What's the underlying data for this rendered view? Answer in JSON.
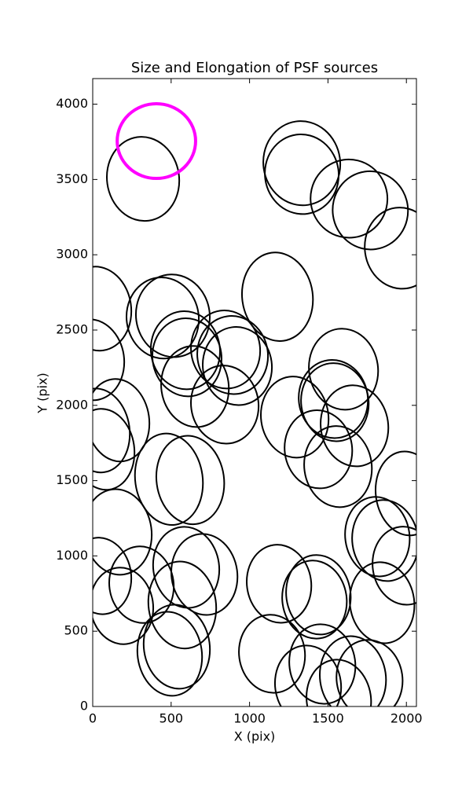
{
  "chart_data": {
    "type": "ellipse",
    "title": "Size and Elongation of PSF sources",
    "xlabel": "X (pix)",
    "ylabel": "Y (pix)",
    "xlim": [
      0,
      2064
    ],
    "ylim": [
      0,
      4170
    ],
    "xticks": [
      0,
      500,
      1000,
      1500,
      2000
    ],
    "yticks": [
      0,
      500,
      1000,
      1500,
      2000,
      2500,
      3000,
      3500,
      4000
    ],
    "series": [
      {
        "color": "#000000",
        "linewidth": 2,
        "x": [
          321,
          1333,
          1333,
          1634,
          1770,
          1965,
          30,
          1178,
          -10,
          446,
          511,
          591,
          601,
          652,
          847,
          892,
          922,
          842,
          1599,
          1534,
          1544,
          1669,
          1288,
          1439,
          1564,
          160,
          70,
          35,
          486,
          622,
          160,
          50,
          185,
          311,
          596,
          712,
          571,
          536,
          491,
          1188,
          1143,
          1414,
          1439,
          1464,
          1373,
          1845,
          1865,
          1815,
          2005,
          1990,
          1659,
          1765,
          1569
        ],
        "y": [
          3504,
          3608,
          3535,
          3373,
          3295,
          3044,
          2642,
          2721,
          2303,
          2580,
          2595,
          2366,
          2319,
          2125,
          2371,
          2334,
          2261,
          2005,
          2240,
          2042,
          2021,
          1864,
          1922,
          1708,
          1593,
          1901,
          1708,
          1833,
          1509,
          1504,
          1159,
          867,
          668,
          809,
          924,
          877,
          674,
          397,
          350,
          815,
          350,
          710,
          742,
          282,
          141,
          689,
          1102,
          1128,
          1415,
          935,
          193,
          183,
          47
        ],
        "width": [
          460,
          490,
          470,
          490,
          480,
          460,
          430,
          450,
          420,
          460,
          470,
          440,
          440,
          430,
          440,
          450,
          440,
          430,
          440,
          440,
          430,
          430,
          430,
          430,
          430,
          400,
          390,
          400,
          430,
          430,
          430,
          390,
          400,
          410,
          420,
          420,
          430,
          420,
          410,
          410,
          420,
          410,
          410,
          420,
          420,
          410,
          420,
          410,
          400,
          410,
          420,
          420,
          410
        ],
        "height": [
          560,
          560,
          530,
          520,
          520,
          540,
          560,
          590,
          540,
          540,
          550,
          520,
          520,
          540,
          520,
          520,
          520,
          520,
          540,
          520,
          520,
          540,
          540,
          520,
          540,
          550,
          540,
          560,
          610,
          590,
          570,
          510,
          510,
          510,
          540,
          540,
          580,
          560,
          560,
          520,
          520,
          520,
          530,
          530,
          530,
          540,
          540,
          530,
          560,
          520,
          550,
          520,
          530
        ],
        "angle": [
          8,
          8,
          8,
          8,
          8,
          8,
          8,
          8,
          8,
          8,
          8,
          8,
          8,
          8,
          8,
          8,
          8,
          8,
          8,
          8,
          8,
          8,
          8,
          8,
          8,
          8,
          8,
          8,
          8,
          8,
          8,
          8,
          8,
          8,
          8,
          8,
          8,
          8,
          8,
          8,
          8,
          8,
          8,
          8,
          8,
          8,
          8,
          8,
          8,
          8,
          8,
          8,
          8
        ]
      },
      {
        "color": "#ff00ff",
        "linewidth": 4,
        "x": [
          406
        ],
        "y": [
          3755
        ],
        "width": [
          500
        ],
        "height": [
          496
        ],
        "angle": [
          0
        ]
      }
    ]
  }
}
